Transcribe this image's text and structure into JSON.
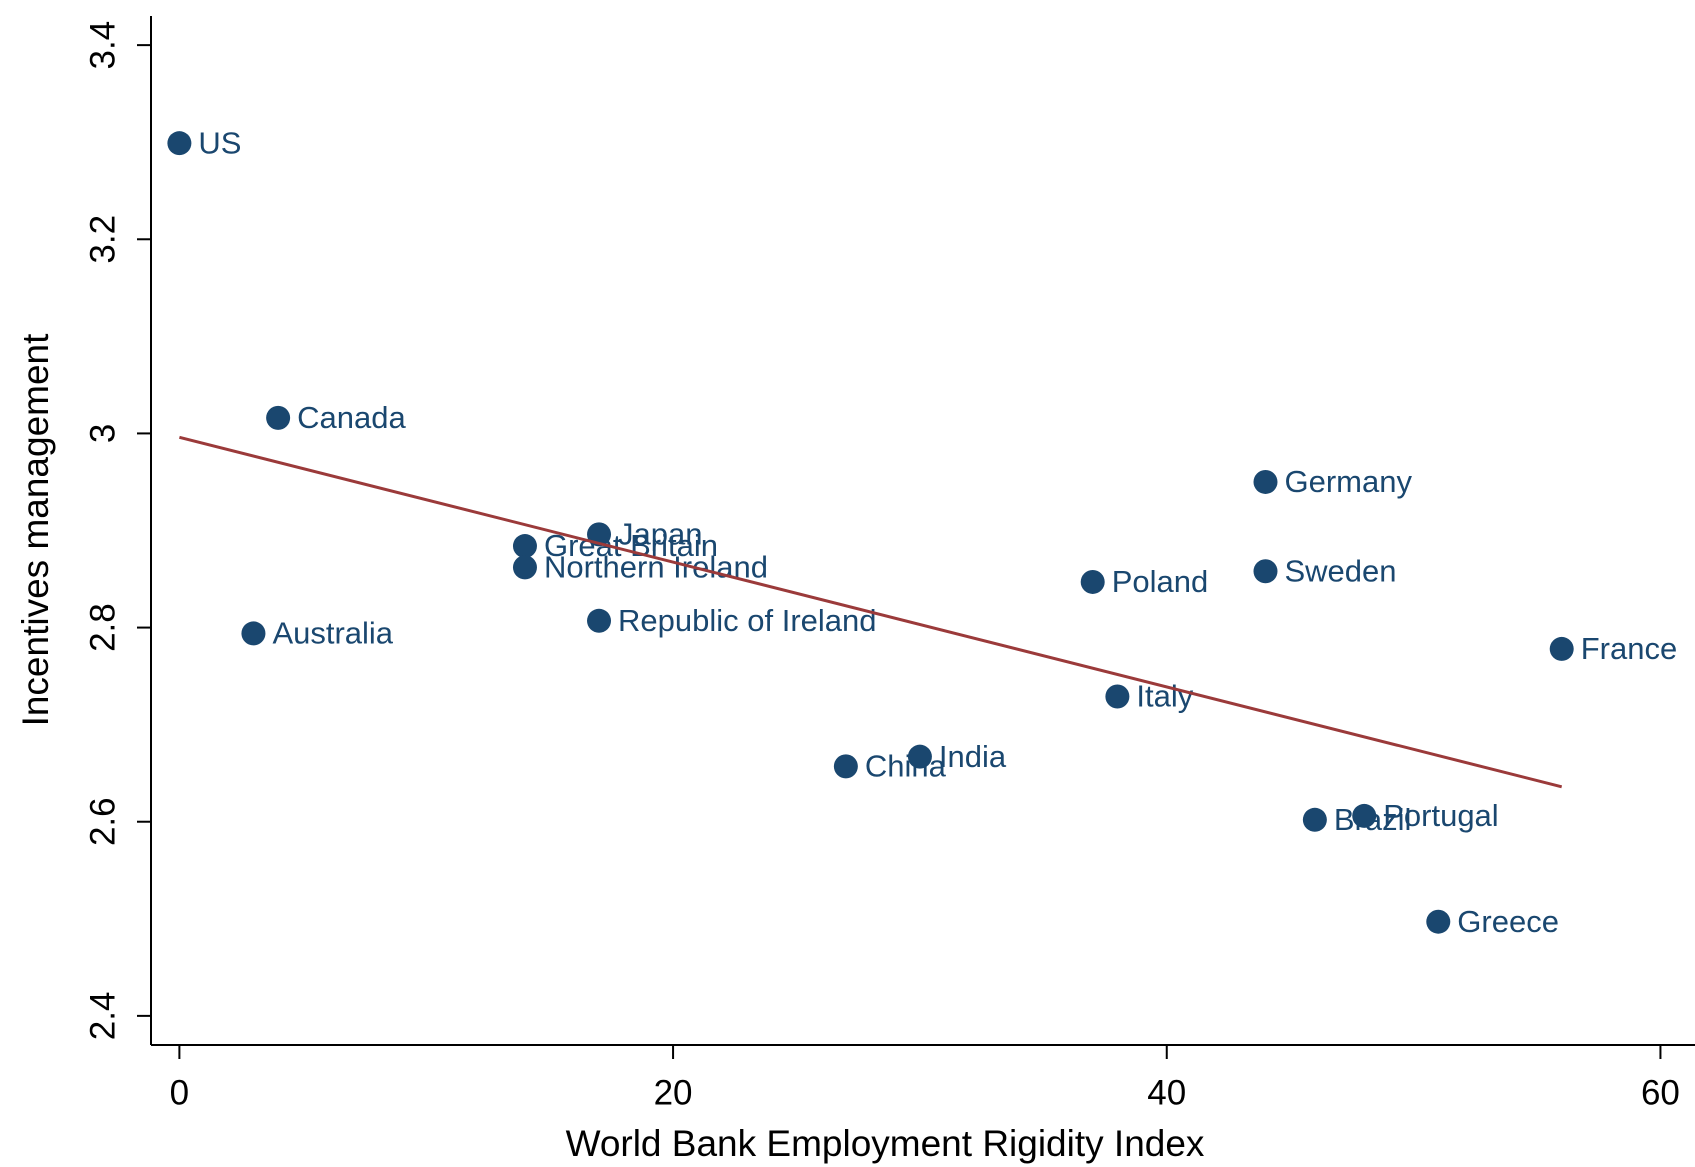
{
  "chart_data": {
    "type": "scatter",
    "x_label": "World Bank Employment Rigidity Index",
    "y_label": "Incentives management",
    "point_labels": [
      "US",
      "Canada",
      "Australia",
      "Great Britain",
      "Northern Ireland",
      "Japan",
      "Republic of Ireland",
      "China",
      "India",
      "Poland",
      "Italy",
      "Germany",
      "Sweden",
      "Brazil",
      "Portugal",
      "Greece",
      "France"
    ],
    "x": [
      0,
      4,
      3,
      14,
      14,
      17,
      17,
      27,
      30,
      37,
      38,
      44,
      44,
      46,
      48,
      51,
      56
    ],
    "values": [
      3.299,
      3.016,
      2.794,
      2.884,
      2.862,
      2.896,
      2.807,
      2.657,
      2.667,
      2.847,
      2.729,
      2.95,
      2.858,
      2.602,
      2.606,
      2.497,
      2.778
    ],
    "color": "#1a476f",
    "fit_line": {
      "x": [
        0,
        56
      ],
      "values": [
        2.996,
        2.636
      ],
      "color": "#9b3a3a"
    },
    "xlim": [
      -1.15,
      61.4
    ],
    "ylim": [
      2.37,
      3.43
    ],
    "xticks": [
      0,
      20,
      40,
      60
    ],
    "yticks": [
      2.4,
      2.6,
      2.8,
      3,
      3.2,
      3.4
    ]
  }
}
